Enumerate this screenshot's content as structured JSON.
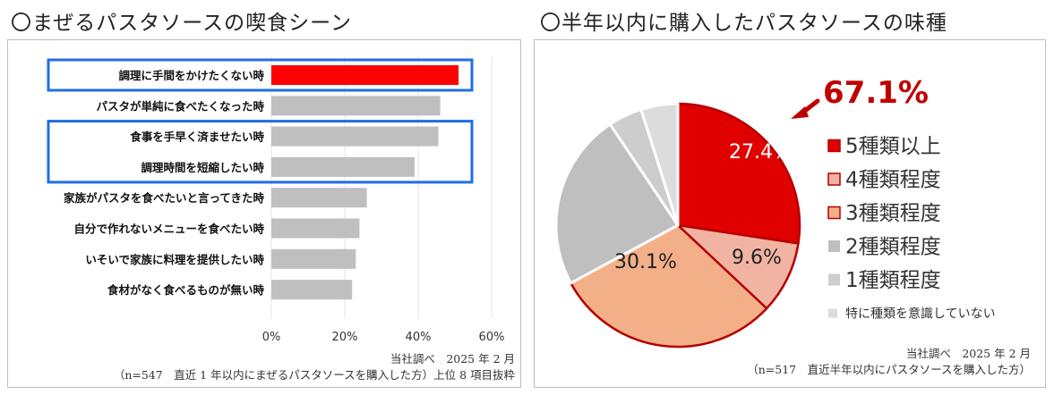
{
  "left": {
    "heading": "〇まぜるパスタソースの喫食シーン",
    "note1": "当社調べ　2025 年 2 月",
    "note2": "（n=547　直近 1 年以内にまぜるパスタソースを購入した方）上位 8 項目抜粋"
  },
  "right": {
    "heading": "〇半年以内に購入したパスタソースの味種",
    "callout": "67.1%",
    "note1": "当社調べ　2025 年 2 月",
    "note2": "（n=517　直近半年以内にパスタソースを購入した方）"
  },
  "chart_data": [
    {
      "type": "bar",
      "orientation": "horizontal",
      "categories": [
        "調理に手間をかけたくない時",
        "パスタが単純に食べたくなった時",
        "食事を手早く済ませたい時",
        "調理時間を短縮したい時",
        "家族がパスタを食べたいと言ってきた時",
        "自分で作れないメニューを食べたい時",
        "いそいで家族に料理を提供したい時",
        "食材がなく食べるものが無い時"
      ],
      "values": [
        51,
        46,
        45.5,
        39,
        26,
        24,
        23,
        22
      ],
      "highlight_index": 0,
      "highlight_color": "#ff0000",
      "bar_color": "#bfbfbf",
      "boxed_groups": [
        [
          0
        ],
        [
          2,
          3
        ]
      ],
      "box_color": "#1f6fe0",
      "xlim": [
        0,
        60
      ],
      "xticks": [
        "0%",
        "20%",
        "40%",
        "60%"
      ]
    },
    {
      "type": "pie",
      "labels": [
        "5種類以上",
        "4種類程度",
        "3種類程度",
        "2種類程度",
        "1種類程度",
        "特に種類を意識していない"
      ],
      "values": [
        27.4,
        9.6,
        30.1,
        23.5,
        4.5,
        4.9
      ],
      "value_labels": [
        "27.4%",
        "9.6%",
        "30.1%",
        "",
        "",
        ""
      ],
      "colors": [
        "#e00000",
        "#f2b4a2",
        "#f3b088",
        "#bfbfbf",
        "#cdcdcd",
        "#dcdcdc"
      ],
      "legend_position": "right"
    }
  ]
}
